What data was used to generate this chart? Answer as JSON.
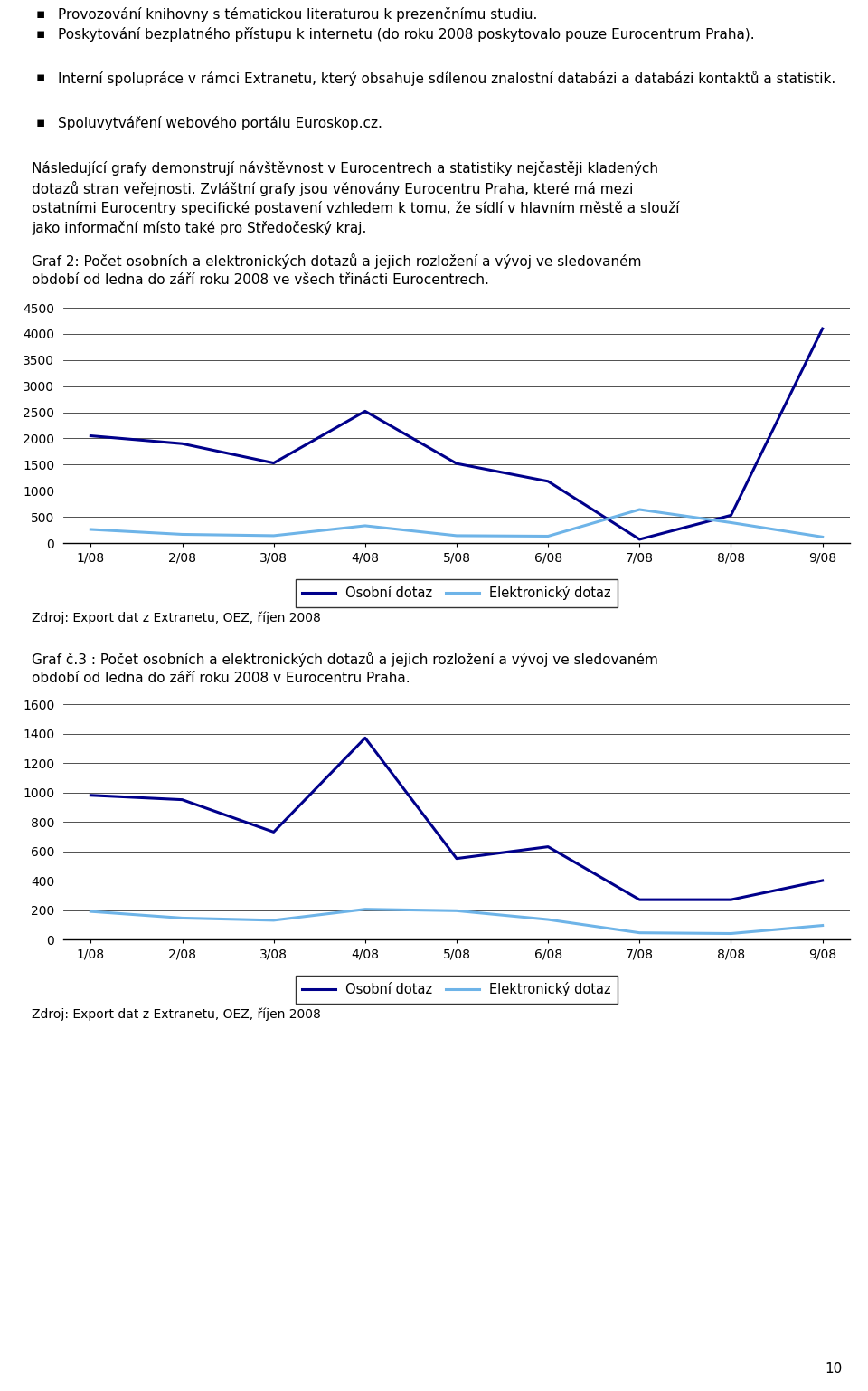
{
  "bullet_points": [
    "Provozování knihovny s tématickou literaturou k prezenčnímu studiu.",
    "Poskytování bezplatného přístupu k internetu (do roku 2008 poskytovalo pouze Eurocentrum Praha).",
    "Interní spolupráce v rámci Extranetu, který obsahuje sdílenou znalostní databázi a databázi kontaktů a statistik.",
    "Spoluvytváření webového portálu Euroskop.cz."
  ],
  "intro_text": "Následující grafy demonstrují návštěvnost v Eurocentrech a statistiky nejčastěji kladených dotazů stran veřejnosti. Zvláštní grafy jsou věnovány Eurocentru Praha, které má mezi ostatními Eurocentry specifické postavení vzhledem k tomu, že sídlí v hlavním městě a slouží jako informační místo také pro Středočeský kraj.",
  "chart1_title_line1": "Graf 2: Počet osobních a elektronických dotazů a jejich rozložení a vývoj ve sledovaném",
  "chart1_title_line2": "období od ledna do září roku 2008 ve všech třinácti Eurocentrech.",
  "chart2_title_line1": "Graf č.3 : Počet osobních a elektronických dotazů a jejich rozložení a vývoj ve sledovaném",
  "chart2_title_line2": "období od ledna do září roku 2008 v Eurocentru Praha.",
  "source_text": "Zdroj: Export dat z Extranetu, OEZ, říjen 2008",
  "page_number": "10",
  "x_labels": [
    "1/08",
    "2/08",
    "3/08",
    "4/08",
    "5/08",
    "6/08",
    "7/08",
    "8/08",
    "9/08"
  ],
  "chart1_osobni": [
    2050,
    1900,
    1530,
    2520,
    1520,
    1180,
    70,
    530,
    4100
  ],
  "chart1_elektronicky": [
    260,
    165,
    140,
    330,
    140,
    130,
    640,
    390,
    115
  ],
  "chart2_osobni": [
    980,
    950,
    730,
    1370,
    550,
    630,
    270,
    270,
    400
  ],
  "chart2_elektronicky": [
    190,
    145,
    130,
    205,
    195,
    135,
    45,
    40,
    95
  ],
  "chart1_ylim": [
    0,
    4500
  ],
  "chart1_yticks": [
    0,
    500,
    1000,
    1500,
    2000,
    2500,
    3000,
    3500,
    4000,
    4500
  ],
  "chart2_ylim": [
    0,
    1600
  ],
  "chart2_yticks": [
    0,
    200,
    400,
    600,
    800,
    1000,
    1200,
    1400,
    1600
  ],
  "osobni_color": "#00008B",
  "elektronicky_color": "#6EB4E8",
  "legend_osobni": "Osobní dotaz",
  "legend_elektronicky": "Elektronický dotaz",
  "background_color": "#ffffff",
  "grid_color": "#333333",
  "text_color": "#000000",
  "font_size": 11,
  "source_font_size": 10
}
